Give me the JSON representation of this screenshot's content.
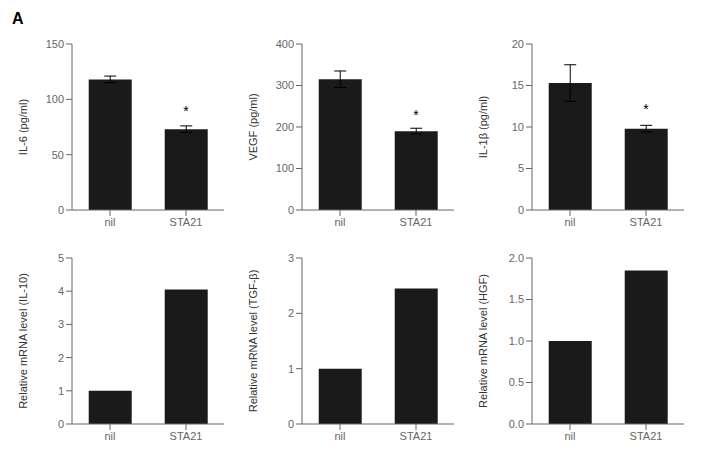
{
  "title": "A",
  "chart_data": [
    {
      "type": "bar",
      "y_label": "IL-6 (pg/ml)",
      "categories": [
        "nil",
        "STA21"
      ],
      "values": [
        118,
        73
      ],
      "errors": [
        3,
        3
      ],
      "color": "#1a1a1a",
      "ylim": [
        0,
        150
      ],
      "yticks": [
        0,
        50,
        100,
        150
      ],
      "grid": false,
      "annotations": [
        {
          "text": "*",
          "x": "STA21",
          "y": 80
        }
      ]
    },
    {
      "type": "bar",
      "y_label": "VEGF (pg/ml)",
      "categories": [
        "nil",
        "STA21"
      ],
      "values": [
        315,
        190
      ],
      "errors": [
        20,
        7
      ],
      "color": "#1a1a1a",
      "ylim": [
        0,
        400
      ],
      "yticks": [
        0,
        100,
        200,
        300,
        400
      ],
      "grid": false,
      "annotations": [
        {
          "text": "*",
          "x": "STA21",
          "y": 205
        }
      ]
    },
    {
      "type": "bar",
      "y_label": "IL-1β (pg/ml)",
      "categories": [
        "nil",
        "STA21"
      ],
      "values": [
        15.3,
        9.8
      ],
      "errors": [
        2.2,
        0.4
      ],
      "color": "#1a1a1a",
      "ylim": [
        0,
        20
      ],
      "yticks": [
        0,
        5,
        10,
        15,
        20
      ],
      "grid": false,
      "annotations": [
        {
          "text": "*",
          "x": "STA21",
          "y": 11
        }
      ]
    },
    {
      "type": "bar",
      "y_label": "Relative mRNA level (IL-10)",
      "categories": [
        "nil",
        "STA21"
      ],
      "values": [
        1.0,
        4.05
      ],
      "color": "#1a1a1a",
      "ylim": [
        0,
        5
      ],
      "yticks": [
        0,
        1,
        2,
        3,
        4,
        5
      ],
      "grid": false
    },
    {
      "type": "bar",
      "y_label": "Relative mRNA level (TGF-β)",
      "categories": [
        "nil",
        "STA21"
      ],
      "values": [
        1.0,
        2.45
      ],
      "color": "#1a1a1a",
      "ylim": [
        0,
        3
      ],
      "yticks": [
        0,
        1,
        2,
        3
      ],
      "grid": false
    },
    {
      "type": "bar",
      "y_label": "Relative mRNA level (HGF)",
      "categories": [
        "nil",
        "STA21"
      ],
      "values": [
        1.0,
        1.85
      ],
      "color": "#1a1a1a",
      "ylim": [
        0,
        2
      ],
      "yticks": [
        {
          "value": 0,
          "label": "0.0"
        },
        0.5,
        {
          "value": 1,
          "label": "1.0"
        },
        1.5,
        {
          "value": 2,
          "label": "2.0"
        }
      ],
      "grid": false
    }
  ]
}
